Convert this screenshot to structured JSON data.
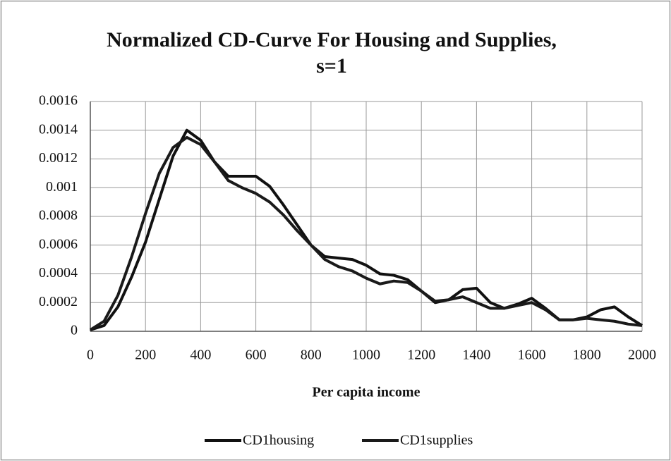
{
  "chart_data": {
    "type": "line",
    "title": "Normalized CD-Curve For Housing and Supplies, s=1",
    "x_label": "Per capita income",
    "x": [
      0,
      50,
      100,
      150,
      200,
      250,
      300,
      350,
      400,
      450,
      500,
      550,
      600,
      650,
      700,
      750,
      800,
      850,
      900,
      950,
      1000,
      1050,
      1100,
      1150,
      1200,
      1250,
      1300,
      1350,
      1400,
      1450,
      1500,
      1550,
      1600,
      1650,
      1700,
      1750,
      1800,
      1850,
      1900,
      1950,
      2000
    ],
    "series": [
      {
        "name": "CD1housing",
        "color": "#111111",
        "values": [
          1e-05,
          4e-05,
          0.00017,
          0.00038,
          0.00062,
          0.00092,
          0.00122,
          0.0014,
          0.00133,
          0.00118,
          0.00108,
          0.00108,
          0.00108,
          0.00101,
          0.00088,
          0.00074,
          0.0006,
          0.00052,
          0.00051,
          0.0005,
          0.00046,
          0.0004,
          0.00039,
          0.00036,
          0.00028,
          0.0002,
          0.00022,
          0.00029,
          0.0003,
          0.0002,
          0.00016,
          0.00019,
          0.00023,
          0.00016,
          8e-05,
          8e-05,
          0.0001,
          0.00015,
          0.00017,
          0.0001,
          4e-05
        ]
      },
      {
        "name": "CD1supplies",
        "color": "#1a1a1a",
        "values": [
          1e-05,
          7e-05,
          0.00025,
          0.00052,
          0.00082,
          0.0011,
          0.00128,
          0.00135,
          0.0013,
          0.00118,
          0.00105,
          0.001,
          0.00096,
          0.0009,
          0.00081,
          0.0007,
          0.0006,
          0.0005,
          0.00045,
          0.00042,
          0.00037,
          0.00033,
          0.00035,
          0.00034,
          0.00028,
          0.00021,
          0.00022,
          0.00024,
          0.0002,
          0.00016,
          0.00016,
          0.00018,
          0.0002,
          0.00015,
          8e-05,
          8e-05,
          9e-05,
          8e-05,
          7e-05,
          5e-05,
          4e-05
        ]
      }
    ],
    "xlim": [
      0,
      2000
    ],
    "xticks": [
      0,
      200,
      400,
      600,
      800,
      1000,
      1200,
      1400,
      1600,
      1800,
      2000
    ],
    "ylim": [
      0,
      0.0016
    ],
    "yticks": [
      0,
      0.0002,
      0.0004,
      0.0006,
      0.0008,
      0.001,
      0.0012,
      0.0014,
      0.0016
    ],
    "grid": true,
    "legend": "bottom"
  }
}
